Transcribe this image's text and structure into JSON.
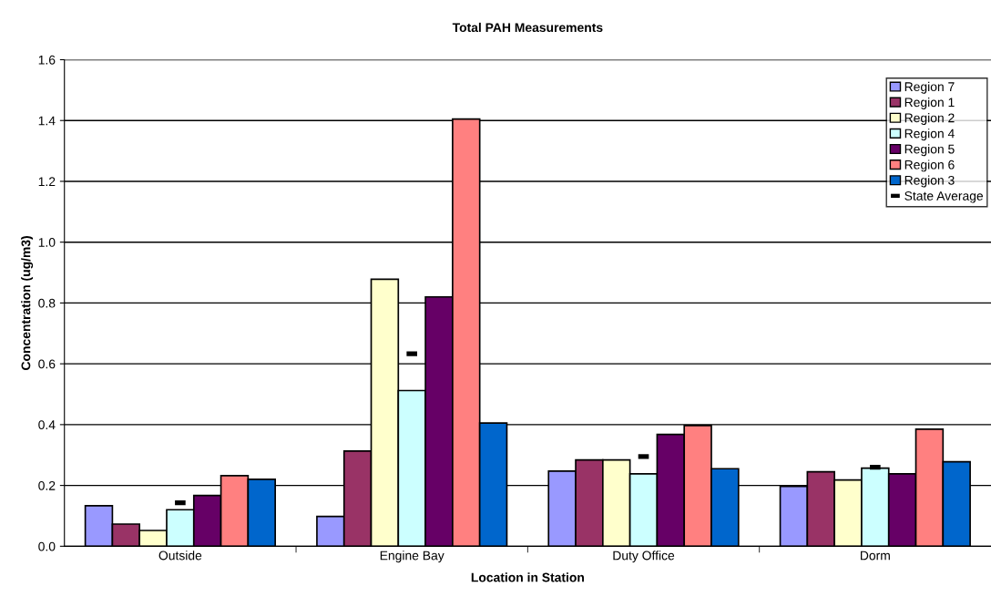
{
  "chart_data": {
    "type": "bar",
    "title": "Total PAH Measurements",
    "xlabel": "Location in Station",
    "ylabel": "Concentration (ug/m3)",
    "categories": [
      "Outside",
      "Engine Bay",
      "Duty Office",
      "Dorm"
    ],
    "series": [
      {
        "name": "Region 7",
        "color": "#9999ff",
        "values": [
          0.133,
          0.098,
          0.247,
          0.197
        ]
      },
      {
        "name": "Region 1",
        "color": "#993366",
        "values": [
          0.073,
          0.313,
          0.284,
          0.245
        ]
      },
      {
        "name": "Region 2",
        "color": "#ffffcc",
        "values": [
          0.052,
          0.878,
          0.284,
          0.218
        ]
      },
      {
        "name": "Region 4",
        "color": "#ccffff",
        "values": [
          0.12,
          0.512,
          0.238,
          0.257
        ]
      },
      {
        "name": "Region 5",
        "color": "#660066",
        "values": [
          0.167,
          0.82,
          0.368,
          0.238
        ]
      },
      {
        "name": "Region 6",
        "color": "#ff8080",
        "values": [
          0.232,
          1.405,
          0.397,
          0.385
        ]
      },
      {
        "name": "Region 3",
        "color": "#0066cc",
        "values": [
          0.22,
          0.405,
          0.255,
          0.278
        ]
      },
      {
        "name": "State Average",
        "type": "scatter",
        "marker": "square",
        "color": "#000000",
        "values": [
          0.143,
          0.633,
          0.295,
          0.26
        ]
      }
    ],
    "ylim": [
      0,
      1.6
    ],
    "yticks": [
      {
        "value": 0,
        "label": "0.0"
      },
      {
        "value": 0.2,
        "label": "0.2"
      },
      {
        "value": 0.4,
        "label": "0.4"
      },
      {
        "value": 0.6,
        "label": "0.6"
      },
      {
        "value": 0.8,
        "label": "0.8"
      },
      {
        "value": 1.0,
        "label": "1.0"
      },
      {
        "value": 1.2,
        "label": "1.2"
      },
      {
        "value": 1.4,
        "label": "1.4"
      },
      {
        "value": 1.6,
        "label": "1.6"
      }
    ],
    "grid": "y",
    "legend": "right"
  }
}
